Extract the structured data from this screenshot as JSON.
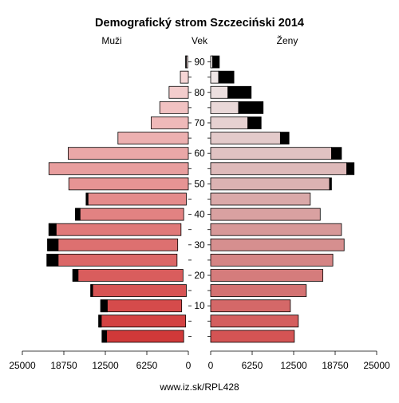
{
  "title": "Demografický strom Szczeciński 2014",
  "labels": {
    "left": "Muži",
    "center": "Vek",
    "right": "Ženy"
  },
  "footer": "www.iz.sk/RPL428",
  "colors": {
    "married_male": "#000000",
    "married_female": "#000000",
    "bar_stroke": "#000000"
  },
  "chart_data": {
    "type": "bar",
    "orientation": "horizontal-pyramid",
    "title": "Demografický strom Szczeciński 2014",
    "age_groups": [
      "0-4",
      "5-9",
      "10-14",
      "15-19",
      "20-24",
      "25-29",
      "30-34",
      "35-39",
      "40-44",
      "45-49",
      "50-54",
      "55-59",
      "60-64",
      "65-69",
      "70-74",
      "75-79",
      "80-84",
      "85-89",
      "90+"
    ],
    "age_ticks": [
      10,
      20,
      30,
      40,
      50,
      60,
      70,
      80,
      90
    ],
    "x_ticks": [
      25000,
      18750,
      12500,
      6250,
      0
    ],
    "x_range": [
      0,
      25000
    ],
    "males": {
      "total": [
        13000,
        13500,
        13200,
        14700,
        17400,
        21300,
        21200,
        21000,
        17000,
        15400,
        18000,
        21000,
        18100,
        10600,
        5600,
        4300,
        2900,
        1200,
        400
      ],
      "black": [
        700,
        400,
        1000,
        300,
        800,
        1700,
        1600,
        1100,
        700,
        300,
        0,
        0,
        0,
        0,
        0,
        0,
        0,
        0,
        100
      ]
    },
    "females": {
      "total": [
        12600,
        13200,
        12000,
        14400,
        16900,
        18400,
        20100,
        19700,
        16500,
        15000,
        18200,
        21600,
        19700,
        11800,
        7600,
        7900,
        6100,
        3500,
        1300
      ],
      "black": [
        0,
        0,
        0,
        0,
        0,
        0,
        0,
        0,
        0,
        0,
        300,
        1100,
        1500,
        1300,
        2000,
        3700,
        3500,
        2300,
        1000
      ]
    }
  }
}
